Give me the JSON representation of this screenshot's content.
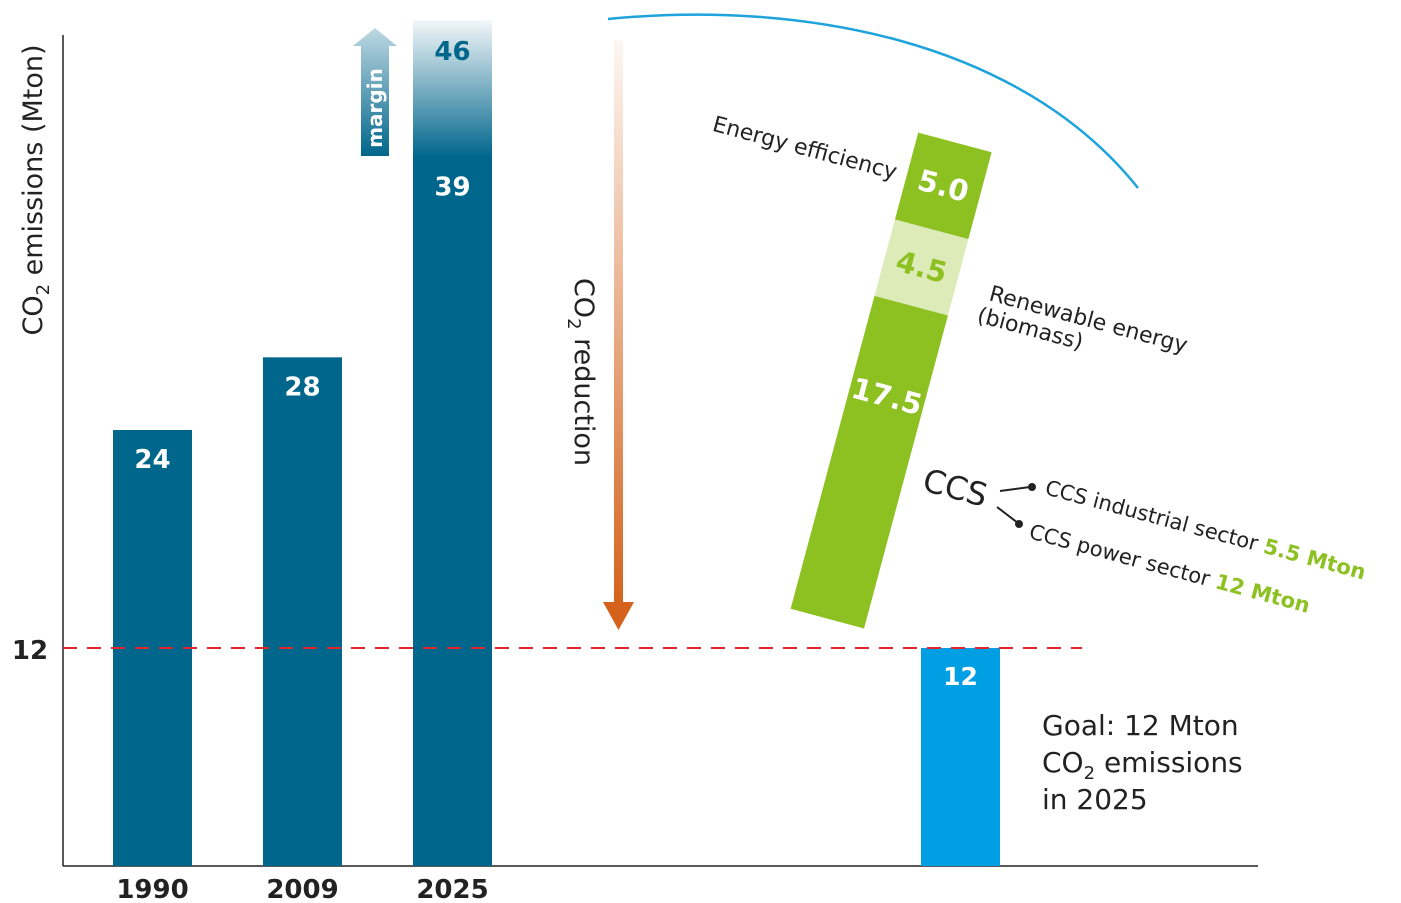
{
  "chart_data": {
    "type": "bar",
    "ylabel": "CO2 emissions (Mton)",
    "ylabel_parts": {
      "pre": "CO",
      "sub": "2",
      "post": " emissions (Mton)"
    },
    "ylim": [
      0,
      46
    ],
    "target_tick": "12",
    "target_value": 12,
    "grid": false,
    "categories": [
      "1990",
      "2009",
      "2025"
    ],
    "values": [
      24,
      28,
      39
    ],
    "value_labels": [
      "24",
      "28",
      "39"
    ],
    "margin_top_value": 46,
    "margin_top_label": "46",
    "margin_label": "margin",
    "reduction_label_parts": {
      "pre": "CO",
      "sub": "2",
      "post": " reduction"
    },
    "reduction_stack": [
      {
        "label": "5.0",
        "value": 5.0,
        "name": "Energy efficiency",
        "color": "#8dc021"
      },
      {
        "label": "4.5",
        "value": 4.5,
        "name_lines": [
          "Renewable energy",
          "(biomass)"
        ],
        "color": "#dcebb8"
      },
      {
        "label": "17.5",
        "value": 17.5,
        "name": "CCS",
        "color": "#8dc021"
      }
    ],
    "ccs_breakdown": [
      {
        "text": "CCS industrial sector ",
        "value": 5.5,
        "value_text": "5.5 Mton"
      },
      {
        "text": "CCS power sector ",
        "value": 12,
        "value_text": "12 Mton"
      }
    ],
    "goal_bar": {
      "value": 12,
      "label": "12"
    },
    "goal_text": {
      "line1": "Goal: 12 Mton",
      "line2_pre": "CO",
      "line2_sub": "2",
      "line2_post": " emissions",
      "line3": "in 2025"
    }
  },
  "colors": {
    "bar": "#00668c",
    "goal_bar": "#009fe3",
    "target_line": "#e3242b",
    "green": "#8dc021",
    "light_green": "#dcebb8",
    "arrow": "#d4621a",
    "arc": "#1ea3dc",
    "axis": "#222222"
  }
}
